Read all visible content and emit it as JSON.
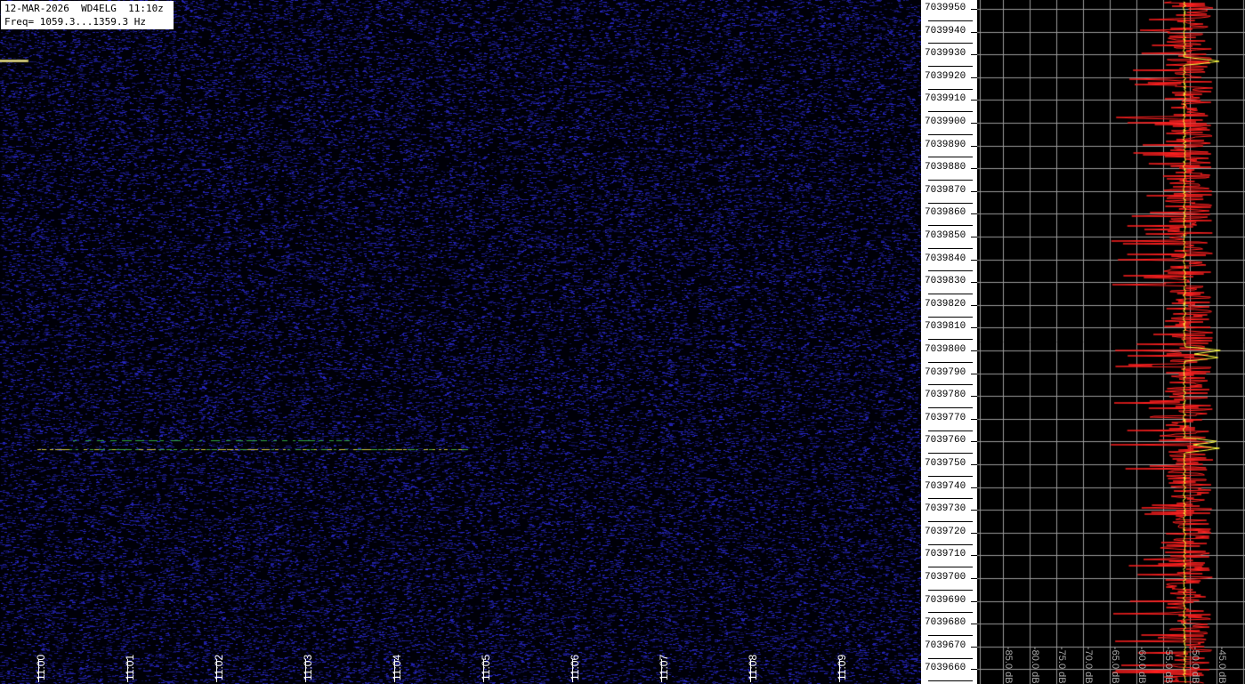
{
  "header": {
    "line1": "12-MAR-2026  WD4ELG  11:10z",
    "line2": "Freq= 1059.3...1359.3 Hz"
  },
  "time_axis": [
    "11:00",
    "11:01",
    "11:02",
    "11:03",
    "11:04",
    "11:05",
    "11:06",
    "11:07",
    "11:08",
    "11:09"
  ],
  "freq_axis": [
    "7039950",
    "7039940",
    "7039930",
    "7039920",
    "7039910",
    "7039900",
    "7039890",
    "7039880",
    "7039870",
    "7039860",
    "7039850",
    "7039840",
    "7039830",
    "7039820",
    "7039810",
    "7039800",
    "7039790",
    "7039780",
    "7039770",
    "7039760",
    "7039750",
    "7039740",
    "7039730",
    "7039720",
    "7039710",
    "7039700",
    "7039690",
    "7039680",
    "7039670",
    "7039660"
  ],
  "db_axis": [
    "-85.0 dB",
    "-80.0 dB",
    "-75.0 dB",
    "-70.0 dB",
    "-65.0 dB",
    "-60.0 dB",
    "-55.0 dB",
    "-50.0 dB",
    "-45.0 dB"
  ],
  "colors": {
    "waterfall_bg": "#000010",
    "noise": "#1a1a9a",
    "signal": "#c8c040",
    "spectrum": "#ff2020",
    "average": "#ffff40",
    "grid": "#9a9a9a"
  }
}
